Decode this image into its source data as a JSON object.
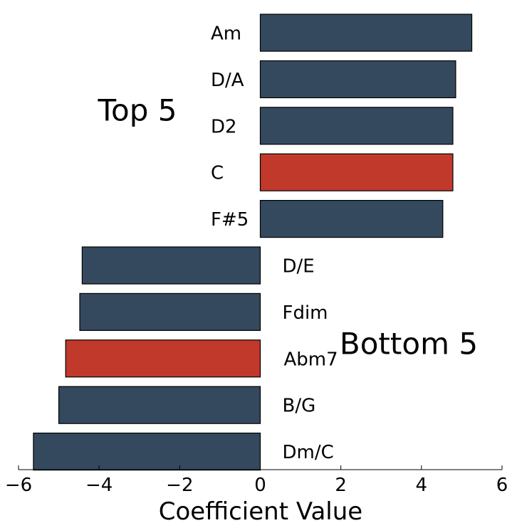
{
  "chart_data": {
    "type": "bar",
    "orientation": "horizontal",
    "xlabel": "Coefficient Value",
    "xlim": [
      -6,
      6
    ],
    "xticks": [
      -6,
      -4,
      -2,
      0,
      2,
      4,
      6
    ],
    "xtick_labels": [
      "−6",
      "−4",
      "−2",
      "0",
      "2",
      "4",
      "6"
    ],
    "grid": false,
    "bars": [
      {
        "label": "Am",
        "value": 5.25,
        "color": "#34495e"
      },
      {
        "label": "D/A",
        "value": 4.85,
        "color": "#34495e"
      },
      {
        "label": "D2",
        "value": 4.78,
        "color": "#34495e"
      },
      {
        "label": "C",
        "value": 4.78,
        "color": "#c0392b"
      },
      {
        "label": "F#5",
        "value": 4.53,
        "color": "#34495e"
      },
      {
        "label": "D/E",
        "value": -4.42,
        "color": "#34495e"
      },
      {
        "label": "Fdim",
        "value": -4.48,
        "color": "#34495e"
      },
      {
        "label": "Abm7",
        "value": -4.83,
        "color": "#c0392b"
      },
      {
        "label": "B/G",
        "value": -5.0,
        "color": "#34495e"
      },
      {
        "label": "Dm/C",
        "value": -5.63,
        "color": "#34495e"
      }
    ],
    "annotations": {
      "top": "Top 5",
      "bottom": "Bottom 5"
    }
  }
}
